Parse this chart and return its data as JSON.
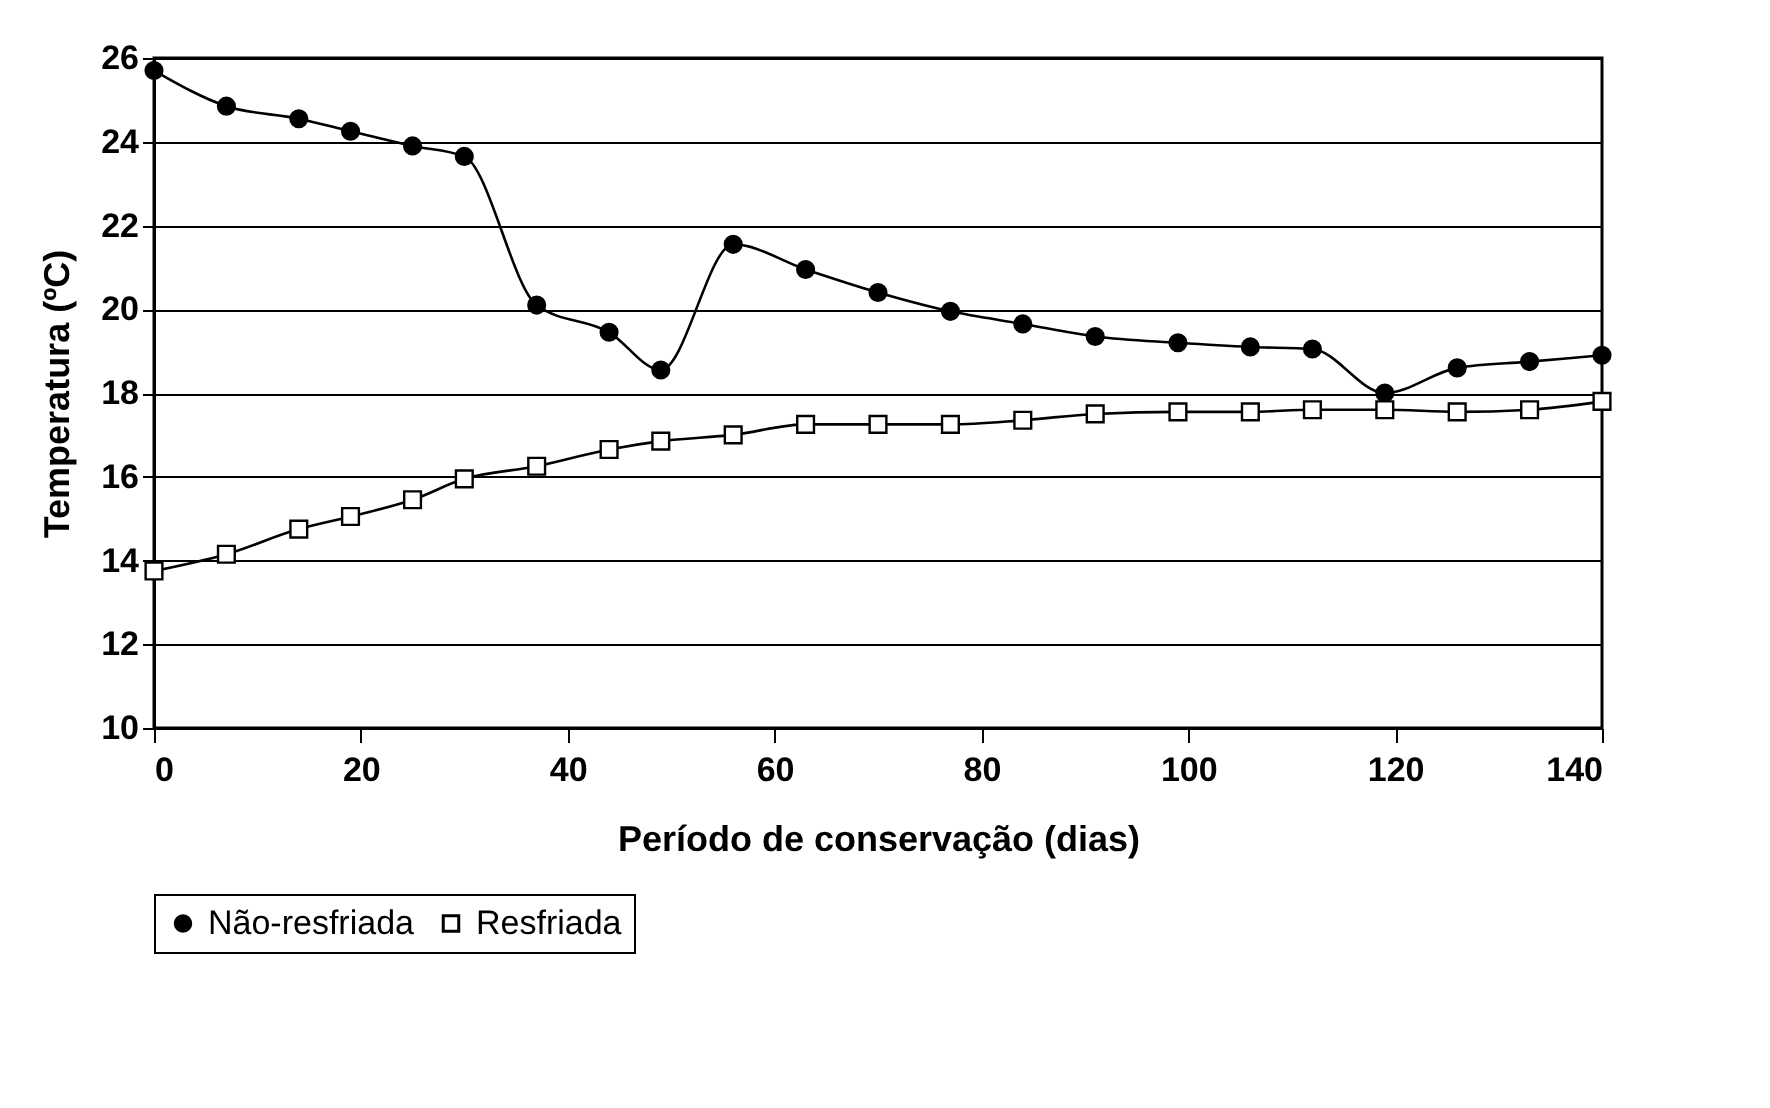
{
  "chart_data": {
    "type": "line",
    "xlabel": "Período de conservação (dias)",
    "ylabel": "Temperatura (ºC)",
    "x": [
      0,
      7,
      14,
      19,
      25,
      30,
      37,
      44,
      49,
      56,
      63,
      70,
      77,
      84,
      91,
      99,
      106,
      112,
      119,
      126,
      133,
      140
    ],
    "series": [
      {
        "name": "Não-resfriada",
        "color": "#000000",
        "marker": "circle",
        "values": [
          25.7,
          24.85,
          24.55,
          24.25,
          23.9,
          23.65,
          20.1,
          19.45,
          18.55,
          21.55,
          20.95,
          20.4,
          19.95,
          19.65,
          19.35,
          19.2,
          19.1,
          19.05,
          18.0,
          18.6,
          18.75,
          18.9
        ]
      },
      {
        "name": "Resfriada",
        "color": "#000000",
        "marker": "square",
        "values": [
          13.75,
          14.15,
          14.75,
          15.05,
          15.45,
          15.95,
          16.25,
          16.65,
          16.85,
          17.0,
          17.25,
          17.25,
          17.25,
          17.35,
          17.5,
          17.55,
          17.55,
          17.6,
          17.6,
          17.55,
          17.6,
          17.8
        ]
      }
    ],
    "xlim": [
      0,
      140
    ],
    "xticks": [
      0,
      20,
      40,
      60,
      80,
      100,
      120,
      140
    ],
    "ylim": [
      10,
      26
    ],
    "yticks": [
      10,
      12,
      14,
      16,
      18,
      20,
      22,
      24,
      26
    ],
    "grid": "y",
    "legend": "bottom",
    "line_style": "solid"
  }
}
